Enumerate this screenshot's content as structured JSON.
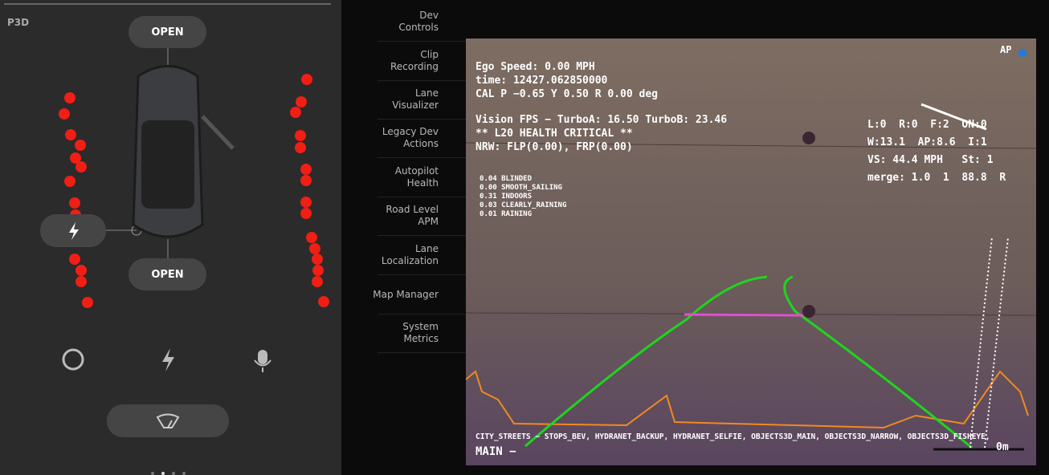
{
  "left_panel": {
    "model": "P3D",
    "front_trunk": "OPEN",
    "rear_trunk": "OPEN"
  },
  "menu": [
    [
      "Dev",
      "Controls"
    ],
    [
      "Clip",
      "Recording"
    ],
    [
      "Lane",
      "Visualizer"
    ],
    [
      "Legacy Dev",
      "Actions"
    ],
    [
      "Autopilot",
      "Health"
    ],
    [
      "Road Level",
      "APM"
    ],
    [
      "Lane",
      "Localization"
    ],
    [
      "Map Manager"
    ],
    [
      "System",
      "Metrics"
    ]
  ],
  "camera": {
    "info": [
      "Ego Speed: 0.00 MPH",
      "time: 12427.062850000",
      "CAL P −0.65 Y 0.50 R 0.00 deg"
    ],
    "vision": [
      "Vision FPS − TurboA: 16.50 TurboB: 23.46",
      "** L20 HEALTH CRITICAL **",
      "NRW: FLP(0.00), FRP(0.00)"
    ],
    "conditions": [
      "0.04 BLINDED",
      "0.00 SMOOTH_SAILING",
      "0.31 INDOORS",
      "0.03 CLEARLY_RAINING",
      "0.01 RAINING"
    ],
    "status": [
      "L:0  R:0  F:2  ON:0",
      "W:13.1  AP:8.6  I:1",
      "VS: 44.4 MPH   St: 1",
      "merge: 1.0  1  88.8  R"
    ],
    "ap": "AP",
    "networks": "CITY_STREETS − STOPS_BEV, HYDRANET_BACKUP, HYDRANET_SELFIE, OBJECTS3D_MAIN, OBJECTS3D_NARROW, OBJECTS3D_FISHEYE,",
    "camera_name": "MAIN −",
    "distance": "0m"
  }
}
